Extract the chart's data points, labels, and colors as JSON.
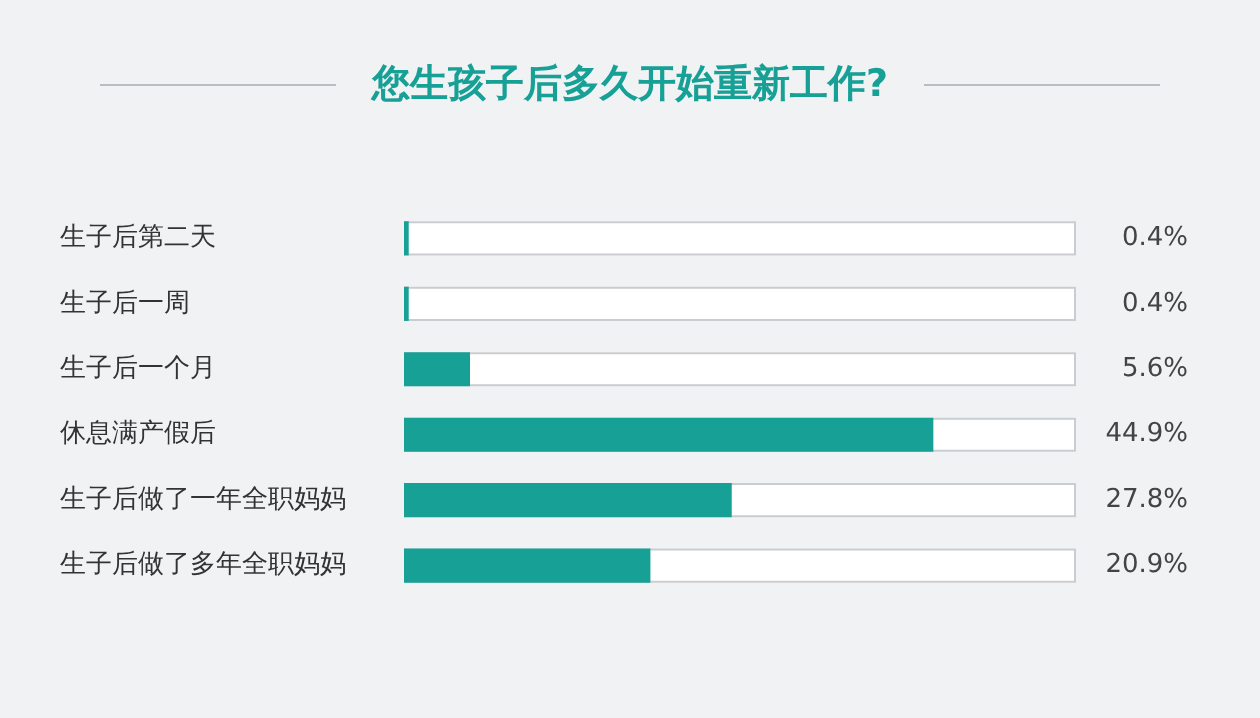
{
  "chart_data": {
    "type": "bar",
    "orientation": "horizontal",
    "title": "您生孩子后多久开始重新工作?",
    "categories": [
      "生子后第二天",
      "生子后一周",
      "生子后一个月",
      "休息满产假后",
      "生子后做了一年全职妈妈",
      "生子后做了多年全职妈妈"
    ],
    "values": [
      0.4,
      0.4,
      5.6,
      44.9,
      27.8,
      20.9
    ],
    "value_labels": [
      "0.4%",
      "0.4%",
      "5.6%",
      "44.9%",
      "27.8%",
      "20.9%"
    ],
    "color": "#17a096",
    "xlim": [
      0,
      57
    ],
    "tick_labels": "y",
    "legend": false
  }
}
